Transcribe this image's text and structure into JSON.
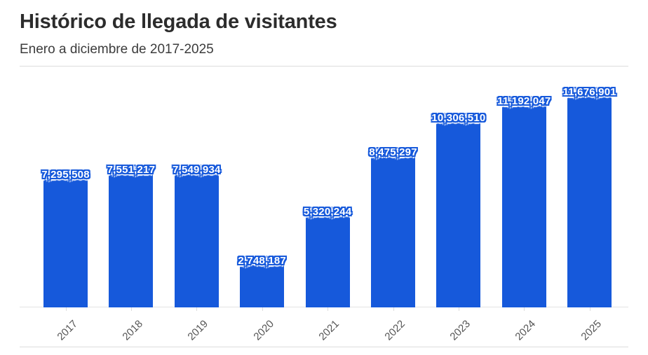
{
  "header": {
    "title": "Histórico de llegada de visitantes",
    "subtitle": "Enero a diciembre de 2017-2025"
  },
  "chart_data": {
    "type": "bar",
    "title": "Histórico de llegada de visitantes",
    "subtitle": "Enero a diciembre de 2017-2025",
    "categories": [
      "2017",
      "2018",
      "2019",
      "2020",
      "2021",
      "2022",
      "2023",
      "2024",
      "2025"
    ],
    "values": [
      7295508,
      7551217,
      7549934,
      2748187,
      5320244,
      8475297,
      10306510,
      11192047,
      11676901
    ],
    "value_labels": [
      "7,295,508",
      "7,551,217",
      "7,549,934",
      "2,748,187",
      "5,320,244",
      "8,475,297",
      "10,306,510",
      "11,192,047",
      "11,676,901"
    ],
    "bar_color": "#1659db",
    "value_label_color": "#ffffff",
    "axis_label_color": "#555555",
    "axis_line_color": "#e3e3e3",
    "xlabel": "",
    "ylabel": "",
    "ylim": [
      0,
      12560000
    ],
    "grid": false,
    "legend": null,
    "x_tick_rotation": -45
  }
}
